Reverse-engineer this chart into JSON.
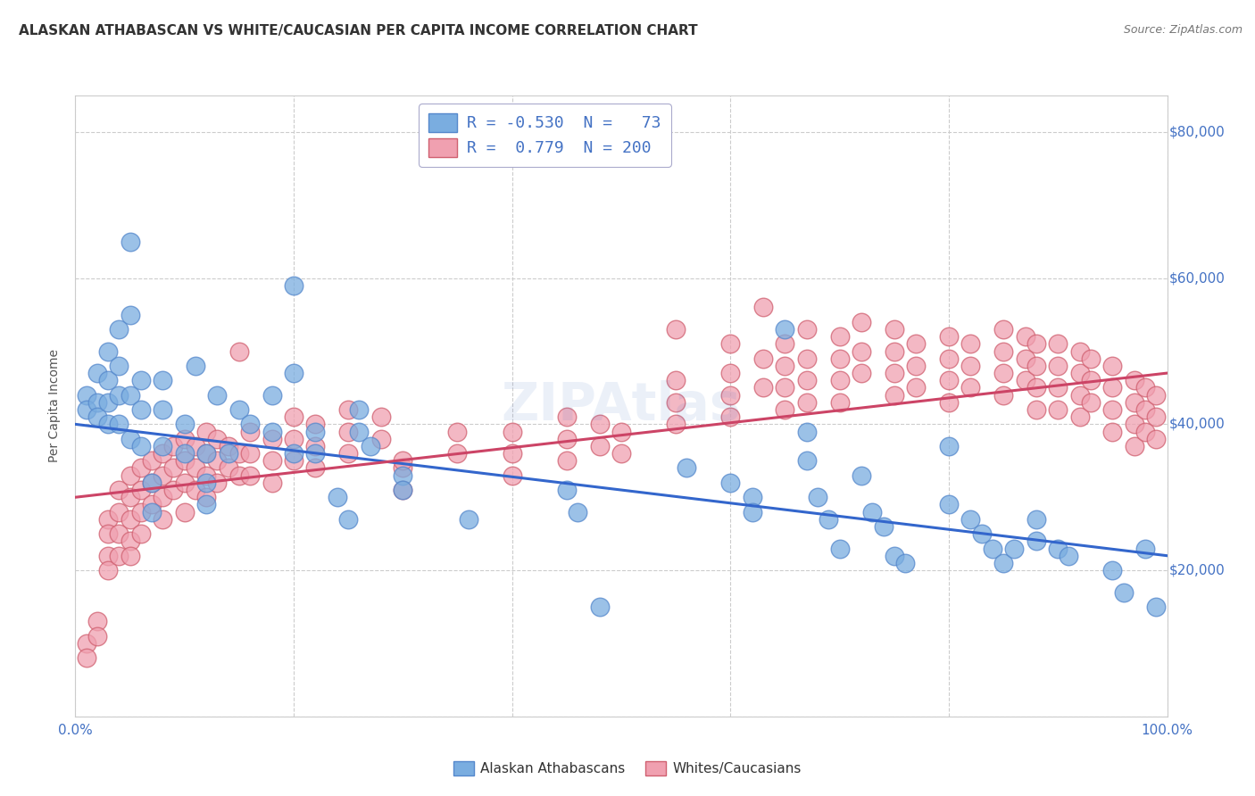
{
  "title": "ALASKAN ATHABASCAN VS WHITE/CAUCASIAN PER CAPITA INCOME CORRELATION CHART",
  "source": "Source: ZipAtlas.com",
  "ylabel": "Per Capita Income",
  "y_ticks": [
    0,
    20000,
    40000,
    60000,
    80000
  ],
  "y_tick_labels": [
    "",
    "$20,000",
    "$40,000",
    "$60,000",
    "$80,000"
  ],
  "ylim": [
    0,
    85000
  ],
  "xlim": [
    0.0,
    1.0
  ],
  "blue_color": "#7aade0",
  "blue_edge": "#5588cc",
  "pink_color": "#f0a0b0",
  "pink_edge": "#d06070",
  "blue_line_color": "#3366cc",
  "pink_line_color": "#cc4466",
  "background_color": "#ffffff",
  "grid_color": "#cccccc",
  "blue_line": {
    "x0": 0.0,
    "y0": 40000,
    "x1": 1.0,
    "y1": 22000
  },
  "pink_line": {
    "x0": 0.0,
    "y0": 30000,
    "x1": 1.0,
    "y1": 47000
  },
  "blue_scatter": [
    [
      0.01,
      44000
    ],
    [
      0.01,
      42000
    ],
    [
      0.02,
      47000
    ],
    [
      0.02,
      43000
    ],
    [
      0.02,
      41000
    ],
    [
      0.03,
      50000
    ],
    [
      0.03,
      46000
    ],
    [
      0.03,
      43000
    ],
    [
      0.03,
      40000
    ],
    [
      0.04,
      53000
    ],
    [
      0.04,
      48000
    ],
    [
      0.04,
      44000
    ],
    [
      0.04,
      40000
    ],
    [
      0.05,
      65000
    ],
    [
      0.05,
      55000
    ],
    [
      0.05,
      44000
    ],
    [
      0.05,
      38000
    ],
    [
      0.06,
      46000
    ],
    [
      0.06,
      42000
    ],
    [
      0.06,
      37000
    ],
    [
      0.07,
      32000
    ],
    [
      0.07,
      28000
    ],
    [
      0.08,
      46000
    ],
    [
      0.08,
      42000
    ],
    [
      0.08,
      37000
    ],
    [
      0.1,
      40000
    ],
    [
      0.1,
      36000
    ],
    [
      0.11,
      48000
    ],
    [
      0.12,
      36000
    ],
    [
      0.12,
      32000
    ],
    [
      0.12,
      29000
    ],
    [
      0.13,
      44000
    ],
    [
      0.14,
      36000
    ],
    [
      0.15,
      42000
    ],
    [
      0.16,
      40000
    ],
    [
      0.18,
      44000
    ],
    [
      0.18,
      39000
    ],
    [
      0.2,
      59000
    ],
    [
      0.2,
      47000
    ],
    [
      0.2,
      36000
    ],
    [
      0.22,
      39000
    ],
    [
      0.22,
      36000
    ],
    [
      0.24,
      30000
    ],
    [
      0.25,
      27000
    ],
    [
      0.26,
      42000
    ],
    [
      0.26,
      39000
    ],
    [
      0.27,
      37000
    ],
    [
      0.3,
      33000
    ],
    [
      0.3,
      31000
    ],
    [
      0.36,
      27000
    ],
    [
      0.45,
      31000
    ],
    [
      0.46,
      28000
    ],
    [
      0.48,
      15000
    ],
    [
      0.56,
      34000
    ],
    [
      0.6,
      32000
    ],
    [
      0.62,
      30000
    ],
    [
      0.62,
      28000
    ],
    [
      0.65,
      53000
    ],
    [
      0.67,
      39000
    ],
    [
      0.67,
      35000
    ],
    [
      0.68,
      30000
    ],
    [
      0.69,
      27000
    ],
    [
      0.7,
      23000
    ],
    [
      0.72,
      33000
    ],
    [
      0.73,
      28000
    ],
    [
      0.74,
      26000
    ],
    [
      0.75,
      22000
    ],
    [
      0.76,
      21000
    ],
    [
      0.8,
      37000
    ],
    [
      0.8,
      29000
    ],
    [
      0.82,
      27000
    ],
    [
      0.83,
      25000
    ],
    [
      0.84,
      23000
    ],
    [
      0.85,
      21000
    ],
    [
      0.86,
      23000
    ],
    [
      0.88,
      27000
    ],
    [
      0.88,
      24000
    ],
    [
      0.9,
      23000
    ],
    [
      0.91,
      22000
    ],
    [
      0.95,
      20000
    ],
    [
      0.96,
      17000
    ],
    [
      0.98,
      23000
    ],
    [
      0.99,
      15000
    ]
  ],
  "pink_scatter": [
    [
      0.01,
      10000
    ],
    [
      0.01,
      8000
    ],
    [
      0.02,
      13000
    ],
    [
      0.02,
      11000
    ],
    [
      0.03,
      27000
    ],
    [
      0.03,
      25000
    ],
    [
      0.03,
      22000
    ],
    [
      0.03,
      20000
    ],
    [
      0.04,
      31000
    ],
    [
      0.04,
      28000
    ],
    [
      0.04,
      25000
    ],
    [
      0.04,
      22000
    ],
    [
      0.05,
      33000
    ],
    [
      0.05,
      30000
    ],
    [
      0.05,
      27000
    ],
    [
      0.05,
      24000
    ],
    [
      0.05,
      22000
    ],
    [
      0.06,
      34000
    ],
    [
      0.06,
      31000
    ],
    [
      0.06,
      28000
    ],
    [
      0.06,
      25000
    ],
    [
      0.07,
      35000
    ],
    [
      0.07,
      32000
    ],
    [
      0.07,
      29000
    ],
    [
      0.08,
      36000
    ],
    [
      0.08,
      33000
    ],
    [
      0.08,
      30000
    ],
    [
      0.08,
      27000
    ],
    [
      0.09,
      37000
    ],
    [
      0.09,
      34000
    ],
    [
      0.09,
      31000
    ],
    [
      0.1,
      38000
    ],
    [
      0.1,
      35000
    ],
    [
      0.1,
      32000
    ],
    [
      0.1,
      28000
    ],
    [
      0.11,
      37000
    ],
    [
      0.11,
      34000
    ],
    [
      0.11,
      31000
    ],
    [
      0.12,
      39000
    ],
    [
      0.12,
      36000
    ],
    [
      0.12,
      33000
    ],
    [
      0.12,
      30000
    ],
    [
      0.13,
      38000
    ],
    [
      0.13,
      35000
    ],
    [
      0.13,
      32000
    ],
    [
      0.14,
      37000
    ],
    [
      0.14,
      34000
    ],
    [
      0.15,
      50000
    ],
    [
      0.15,
      36000
    ],
    [
      0.15,
      33000
    ],
    [
      0.16,
      39000
    ],
    [
      0.16,
      36000
    ],
    [
      0.16,
      33000
    ],
    [
      0.18,
      38000
    ],
    [
      0.18,
      35000
    ],
    [
      0.18,
      32000
    ],
    [
      0.2,
      41000
    ],
    [
      0.2,
      38000
    ],
    [
      0.2,
      35000
    ],
    [
      0.22,
      40000
    ],
    [
      0.22,
      37000
    ],
    [
      0.22,
      34000
    ],
    [
      0.25,
      42000
    ],
    [
      0.25,
      39000
    ],
    [
      0.25,
      36000
    ],
    [
      0.28,
      41000
    ],
    [
      0.28,
      38000
    ],
    [
      0.3,
      34000
    ],
    [
      0.3,
      31000
    ],
    [
      0.3,
      35000
    ],
    [
      0.35,
      39000
    ],
    [
      0.35,
      36000
    ],
    [
      0.4,
      39000
    ],
    [
      0.4,
      36000
    ],
    [
      0.4,
      33000
    ],
    [
      0.45,
      41000
    ],
    [
      0.45,
      38000
    ],
    [
      0.45,
      35000
    ],
    [
      0.48,
      40000
    ],
    [
      0.48,
      37000
    ],
    [
      0.5,
      39000
    ],
    [
      0.5,
      36000
    ],
    [
      0.55,
      53000
    ],
    [
      0.55,
      46000
    ],
    [
      0.55,
      43000
    ],
    [
      0.55,
      40000
    ],
    [
      0.6,
      51000
    ],
    [
      0.6,
      47000
    ],
    [
      0.6,
      44000
    ],
    [
      0.6,
      41000
    ],
    [
      0.63,
      56000
    ],
    [
      0.63,
      49000
    ],
    [
      0.63,
      45000
    ],
    [
      0.65,
      51000
    ],
    [
      0.65,
      48000
    ],
    [
      0.65,
      45000
    ],
    [
      0.65,
      42000
    ],
    [
      0.67,
      53000
    ],
    [
      0.67,
      49000
    ],
    [
      0.67,
      46000
    ],
    [
      0.67,
      43000
    ],
    [
      0.7,
      52000
    ],
    [
      0.7,
      49000
    ],
    [
      0.7,
      46000
    ],
    [
      0.7,
      43000
    ],
    [
      0.72,
      54000
    ],
    [
      0.72,
      50000
    ],
    [
      0.72,
      47000
    ],
    [
      0.75,
      53000
    ],
    [
      0.75,
      50000
    ],
    [
      0.75,
      47000
    ],
    [
      0.75,
      44000
    ],
    [
      0.77,
      51000
    ],
    [
      0.77,
      48000
    ],
    [
      0.77,
      45000
    ],
    [
      0.8,
      52000
    ],
    [
      0.8,
      49000
    ],
    [
      0.8,
      46000
    ],
    [
      0.8,
      43000
    ],
    [
      0.82,
      51000
    ],
    [
      0.82,
      48000
    ],
    [
      0.82,
      45000
    ],
    [
      0.85,
      53000
    ],
    [
      0.85,
      50000
    ],
    [
      0.85,
      47000
    ],
    [
      0.85,
      44000
    ],
    [
      0.87,
      52000
    ],
    [
      0.87,
      49000
    ],
    [
      0.87,
      46000
    ],
    [
      0.88,
      51000
    ],
    [
      0.88,
      48000
    ],
    [
      0.88,
      45000
    ],
    [
      0.88,
      42000
    ],
    [
      0.9,
      51000
    ],
    [
      0.9,
      48000
    ],
    [
      0.9,
      45000
    ],
    [
      0.9,
      42000
    ],
    [
      0.92,
      50000
    ],
    [
      0.92,
      47000
    ],
    [
      0.92,
      44000
    ],
    [
      0.92,
      41000
    ],
    [
      0.93,
      49000
    ],
    [
      0.93,
      46000
    ],
    [
      0.93,
      43000
    ],
    [
      0.95,
      48000
    ],
    [
      0.95,
      45000
    ],
    [
      0.95,
      42000
    ],
    [
      0.95,
      39000
    ],
    [
      0.97,
      46000
    ],
    [
      0.97,
      43000
    ],
    [
      0.97,
      40000
    ],
    [
      0.97,
      37000
    ],
    [
      0.98,
      45000
    ],
    [
      0.98,
      42000
    ],
    [
      0.98,
      39000
    ],
    [
      0.99,
      44000
    ],
    [
      0.99,
      41000
    ],
    [
      0.99,
      38000
    ]
  ]
}
